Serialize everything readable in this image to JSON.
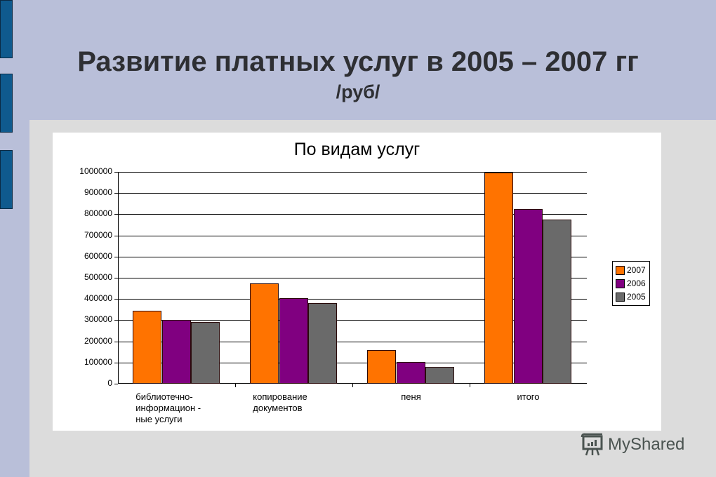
{
  "slide": {
    "title_line1": "Развитие платных услуг в 2005 – 2007 гг",
    "title_line2": "/руб/",
    "watermark": "MyShared",
    "watermark_icon": "presentation-board-icon"
  },
  "chart_data": {
    "type": "bar",
    "title": "По видам услуг",
    "xlabel": "",
    "ylabel": "",
    "ylim": [
      0,
      1000000
    ],
    "yticks": [
      0,
      100000,
      200000,
      300000,
      400000,
      500000,
      600000,
      700000,
      800000,
      900000,
      1000000
    ],
    "ytick_labels": [
      "0",
      "100000",
      "200000",
      "300000",
      "400000",
      "500000",
      "600000",
      "700000",
      "800000",
      "900000",
      "1000000"
    ],
    "grid": true,
    "legend_position": "right",
    "categories": [
      "библиотечно-информационные услуги",
      "копирование документов",
      "пеня",
      "итого"
    ],
    "category_labels": [
      [
        "библиотечно-",
        "информацион -",
        "ные услуги"
      ],
      [
        "копирование",
        "документов"
      ],
      [
        "пеня"
      ],
      [
        "итого"
      ]
    ],
    "series": [
      {
        "name": "2007",
        "color": "#ff7300",
        "values": [
          344000,
          473000,
          159000,
          997000
        ]
      },
      {
        "name": "2006",
        "color": "#800080",
        "values": [
          301000,
          404000,
          103000,
          824000
        ]
      },
      {
        "name": "2005",
        "color": "#6a6a6a",
        "values": [
          291000,
          381000,
          80000,
          775000
        ]
      }
    ]
  }
}
